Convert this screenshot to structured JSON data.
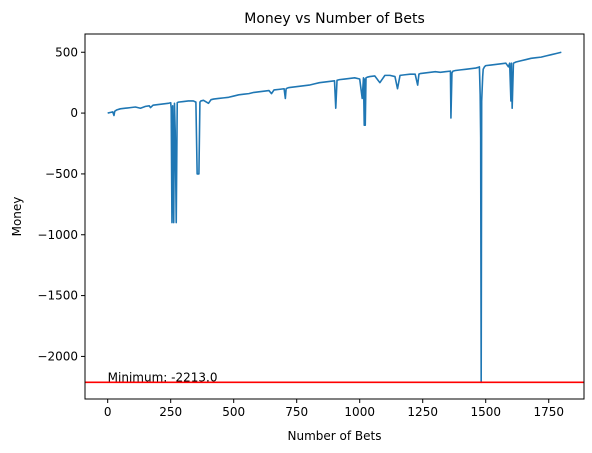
{
  "chart_data": {
    "type": "line",
    "title": "Money vs Number of Bets",
    "xlabel": "Number of Bets",
    "ylabel": "Money",
    "xlim": [
      -90,
      1890
    ],
    "ylim": [
      -2350,
      650
    ],
    "xticks": [
      0,
      250,
      500,
      750,
      1000,
      1250,
      1500,
      1750
    ],
    "xtick_labels": [
      "0",
      "250",
      "500",
      "750",
      "1000",
      "1250",
      "1500",
      "1750"
    ],
    "yticks": [
      500,
      0,
      -500,
      -1000,
      -1500,
      -2000
    ],
    "ytick_labels": [
      "500",
      "0",
      "−500",
      "−1000",
      "−1500",
      "−2000"
    ],
    "grid": false,
    "series": [
      {
        "color": "#1f77b4",
        "x": [
          0,
          10,
          20,
          25,
          28,
          35,
          50,
          70,
          90,
          110,
          130,
          150,
          165,
          170,
          180,
          200,
          220,
          240,
          250,
          252,
          255,
          258,
          262,
          265,
          268,
          272,
          276,
          280,
          300,
          320,
          340,
          350,
          355,
          358,
          362,
          366,
          370,
          380,
          400,
          410,
          420,
          440,
          460,
          480,
          500,
          520,
          540,
          560,
          580,
          600,
          620,
          640,
          650,
          660,
          680,
          700,
          705,
          708,
          712,
          720,
          740,
          760,
          780,
          800,
          820,
          840,
          860,
          880,
          900,
          905,
          910,
          920,
          940,
          960,
          980,
          1000,
          1010,
          1015,
          1018,
          1020,
          1022,
          1025,
          1030,
          1040,
          1060,
          1080,
          1100,
          1120,
          1140,
          1150,
          1160,
          1180,
          1200,
          1220,
          1230,
          1235,
          1240,
          1260,
          1280,
          1300,
          1320,
          1340,
          1360,
          1362,
          1366,
          1370,
          1380,
          1400,
          1420,
          1440,
          1460,
          1470,
          1475,
          1478,
          1480,
          1482,
          1484,
          1486,
          1488,
          1490,
          1495,
          1500,
          1520,
          1540,
          1560,
          1580,
          1590,
          1595,
          1600,
          1602,
          1605,
          1610,
          1620,
          1640,
          1660,
          1680,
          1700,
          1720,
          1740,
          1760,
          1780,
          1800
        ],
        "y": [
          0,
          5,
          10,
          -20,
          15,
          25,
          35,
          40,
          45,
          50,
          40,
          55,
          60,
          45,
          65,
          70,
          75,
          80,
          85,
          40,
          -900,
          60,
          -900,
          80,
          -150,
          -900,
          85,
          90,
          95,
          100,
          100,
          90,
          -500,
          -500,
          -500,
          90,
          100,
          105,
          80,
          110,
          115,
          120,
          125,
          130,
          140,
          150,
          155,
          160,
          170,
          175,
          180,
          185,
          160,
          190,
          195,
          200,
          120,
          200,
          205,
          210,
          215,
          220,
          225,
          230,
          240,
          250,
          255,
          260,
          265,
          40,
          270,
          275,
          280,
          285,
          290,
          280,
          120,
          290,
          -100,
          280,
          -100,
          290,
          295,
          300,
          305,
          250,
          310,
          310,
          300,
          200,
          310,
          315,
          320,
          320,
          230,
          320,
          325,
          330,
          335,
          340,
          335,
          340,
          345,
          -40,
          330,
          345,
          350,
          355,
          360,
          365,
          370,
          375,
          380,
          150,
          -200,
          -2213,
          100,
          200,
          300,
          360,
          380,
          390,
          395,
          400,
          405,
          410,
          380,
          410,
          100,
          410,
          40,
          410,
          420,
          430,
          440,
          450,
          455,
          460,
          470,
          480,
          490,
          500
        ]
      }
    ],
    "hline": {
      "y": -2213,
      "color": "#ff0000"
    },
    "annotations": [
      {
        "text": "Minimum: -2213.0",
        "x": 0,
        "y": -2213
      }
    ]
  }
}
